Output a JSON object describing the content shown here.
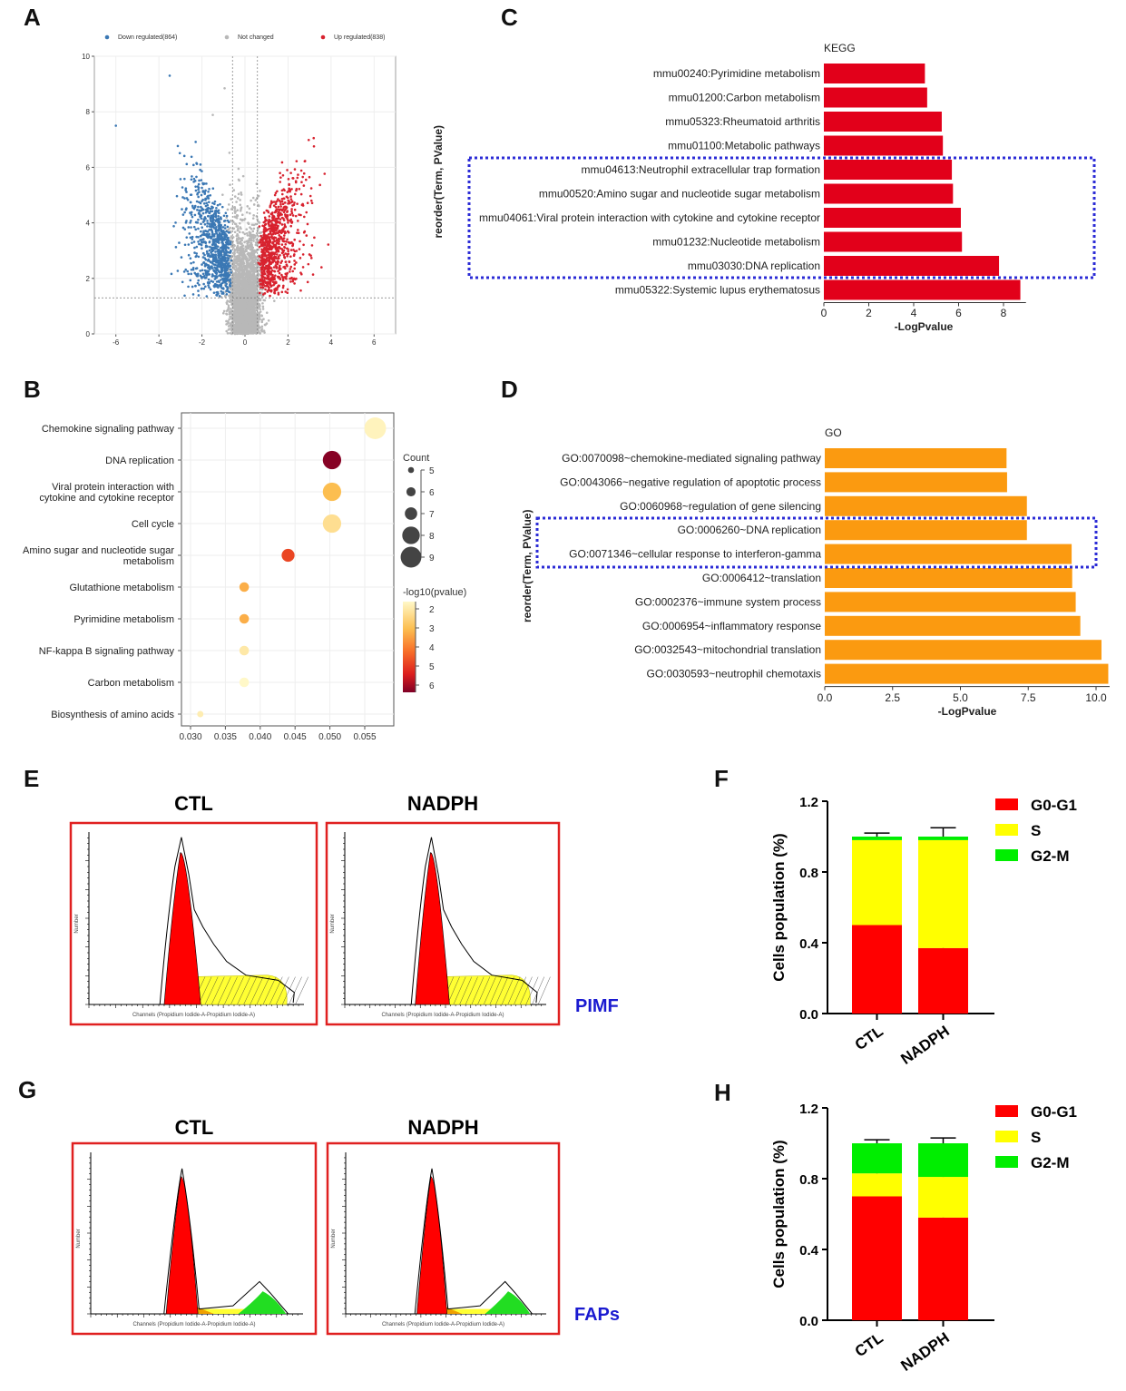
{
  "panel_letters": [
    "A",
    "B",
    "C",
    "D",
    "E",
    "F",
    "G",
    "H"
  ],
  "chart_data": [
    {
      "panel": "A",
      "type": "scatter",
      "legend": [
        {
          "label": "Down regulated(864)",
          "color": "#3b78b4"
        },
        {
          "label": "Not changed",
          "color": "#b8b8b8"
        },
        {
          "label": "Up regulated(838)",
          "color": "#d8232f"
        }
      ],
      "counts": {
        "down": 864,
        "up": 838
      },
      "xlim": [
        -7,
        7
      ],
      "ylim": [
        0,
        10
      ],
      "xticks": [
        "-6",
        "-4",
        "-2",
        "0",
        "2",
        "4",
        "6"
      ],
      "yticks": [
        "0",
        "2",
        "4",
        "6",
        "8",
        "10"
      ],
      "thresholds": {
        "log2fc": [
          -0.58,
          0.58
        ],
        "neg_log10_p": 1.3
      },
      "grid": true
    },
    {
      "panel": "B",
      "type": "scatter",
      "categories": [
        "Chemokine signaling pathway",
        "DNA replication",
        "Viral protein interaction with|cytokine and cytokine receptor",
        "Cell cycle",
        "Amino sugar and nucleotide sugar|metabolism",
        "Glutathione metabolism",
        "Pyrimidine metabolism",
        "NF-kappa B signaling pathway",
        "Carbon metabolism",
        "Biosynthesis of amino acids"
      ],
      "x": [
        0.0565,
        0.0503,
        0.0503,
        0.0503,
        0.044,
        0.0377,
        0.0377,
        0.0377,
        0.0377,
        0.0314
      ],
      "count": [
        9,
        8,
        8,
        8,
        7,
        6,
        6,
        6,
        6,
        5
      ],
      "neg_log10_p": [
        2.0,
        6.2,
        3.0,
        2.4,
        4.5,
        3.2,
        3.2,
        2.2,
        1.9,
        2.1
      ],
      "xlim": [
        0.0285,
        0.0595
      ],
      "xticks": [
        "0.030",
        "0.035",
        "0.040",
        "0.045",
        "0.050",
        "0.055"
      ],
      "size_legend_title": "Count",
      "size_legend": [
        "5",
        "6",
        "7",
        "8",
        "9"
      ],
      "color_legend_title": "-log10(pvalue)",
      "color_legend": [
        "2",
        "3",
        "4",
        "5",
        "6"
      ],
      "grid": true
    },
    {
      "panel": "C",
      "type": "bar",
      "title": "KEGG",
      "ylabel": "reorder(Term, PValue)",
      "xlabel": "-LogPvalue",
      "categories": [
        "mmu00240:Pyrimidine metabolism",
        "mmu01200:Carbon metabolism",
        "mmu05323:Rheumatoid arthritis",
        "mmu01100:Metabolic pathways",
        "mmu04613:Neutrophil extracellular trap formation",
        "mmu00520:Amino sugar and nucleotide sugar metabolism",
        "mmu04061:Viral protein interaction with cytokine and cytokine receptor",
        "mmu01232:Nucleotide metabolism",
        "mmu03030:DNA replication",
        "mmu05322:Systemic lupus erythematosus"
      ],
      "values": [
        4.5,
        4.6,
        5.25,
        5.3,
        5.7,
        5.75,
        6.1,
        6.15,
        7.8,
        8.75
      ],
      "highlighted_range": [
        4,
        8
      ],
      "xlim": [
        0,
        9
      ],
      "xticks": [
        "0",
        "2",
        "4",
        "6",
        "8"
      ],
      "color": "#e2001a"
    },
    {
      "panel": "D",
      "type": "bar",
      "title": "GO",
      "ylabel": "reorder(Term, PValue)",
      "xlabel": "-LogPvalue",
      "categories": [
        "GO:0070098~chemokine-mediated signaling pathway",
        "GO:0043066~negative regulation of apoptotic process",
        "GO:0060968~regulation of gene silencing",
        "GO:0006260~DNA replication",
        "GO:0071346~cellular response to interferon-gamma",
        "GO:0006412~translation",
        "GO:0002376~immune system process",
        "GO:0006954~inflammatory response",
        "GO:0032543~mitochondrial translation",
        "GO:0030593~neutrophil chemotaxis"
      ],
      "values": [
        6.7,
        6.72,
        7.45,
        7.45,
        9.1,
        9.12,
        9.25,
        9.42,
        10.2,
        10.45
      ],
      "highlighted_range": [
        3,
        4
      ],
      "xlim": [
        0,
        10.5
      ],
      "xticks": [
        "0.0",
        "2.5",
        "5.0",
        "7.5",
        "10.0"
      ],
      "color": "#fb9a10"
    },
    {
      "panel": "F",
      "type": "bar",
      "stacked": true,
      "ylabel": "Cells population (%)",
      "categories": [
        "CTL",
        "NADPH"
      ],
      "series": [
        {
          "name": "G0-G1",
          "values": [
            0.5,
            0.37
          ],
          "err": [
            0.01,
            0.05
          ],
          "color": "#ff0000"
        },
        {
          "name": "S",
          "values": [
            0.48,
            0.61
          ],
          "color": "#ffff00"
        },
        {
          "name": "G2-M",
          "values": [
            0.02,
            0.02
          ],
          "err": [
            0.02,
            0.05
          ],
          "color": "#00ee00"
        }
      ],
      "ylim": [
        0,
        1.2
      ],
      "yticks": [
        "0.0",
        "0.4",
        "0.8",
        "1.2"
      ],
      "side_label": "PIMF"
    },
    {
      "panel": "H",
      "type": "bar",
      "stacked": true,
      "ylabel": "Cells population (%)",
      "categories": [
        "CTL",
        "NADPH"
      ],
      "series": [
        {
          "name": "G0-G1",
          "values": [
            0.7,
            0.58
          ],
          "err": [
            0.05,
            0.03
          ],
          "color": "#ff0000"
        },
        {
          "name": "S",
          "values": [
            0.13,
            0.23
          ],
          "err": [
            0.03,
            0.06
          ],
          "color": "#ffff00"
        },
        {
          "name": "G2-M",
          "values": [
            0.17,
            0.19
          ],
          "err": [
            0.02,
            0.03
          ],
          "color": "#00ee00"
        }
      ],
      "ylim": [
        0,
        1.2
      ],
      "yticks": [
        "0.0",
        "0.4",
        "0.8",
        "1.2"
      ],
      "side_label": "FAPs"
    }
  ],
  "flow": {
    "E": {
      "titles": [
        "CTL",
        "NADPH"
      ],
      "side_label": "PIMF"
    },
    "G": {
      "titles": [
        "CTL",
        "NADPH"
      ],
      "side_label": "FAPs"
    },
    "xaxis_label": "Channels (Propidium Iodide-A-Propidium Iodide-A)",
    "yaxis_label": "Number",
    "colors": {
      "g0g1": "#ff0000",
      "s": "#ffff33",
      "g2m": "#22dd22",
      "overlap": "#f0a000",
      "frame": "#e02020"
    }
  }
}
